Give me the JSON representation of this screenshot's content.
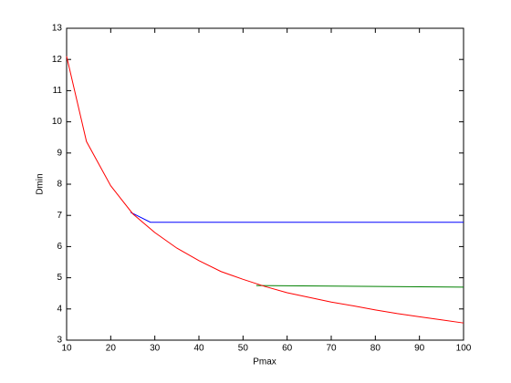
{
  "chart_data": {
    "type": "line",
    "x_label": "Pmax",
    "y_label": "Dmin",
    "xlim": [
      10,
      100
    ],
    "xticks": [
      10,
      20,
      30,
      40,
      50,
      60,
      70,
      80,
      90,
      100
    ],
    "ylim": [
      3,
      13
    ],
    "yticks": [
      3,
      4,
      5,
      6,
      7,
      8,
      9,
      10,
      11,
      12,
      13
    ],
    "series": [
      {
        "color": "#0000ff",
        "x": [
          24.5,
          29,
          100
        ],
        "values": [
          7.1,
          6.78,
          6.78
        ]
      },
      {
        "color": "#008000",
        "x": [
          53,
          100
        ],
        "values": [
          4.75,
          4.7
        ]
      },
      {
        "color": "#ff0000",
        "x": [
          10,
          14.5,
          20,
          25,
          30,
          35,
          40,
          45,
          50,
          55,
          60,
          65,
          70,
          75,
          80,
          85,
          90,
          95,
          100
        ],
        "values": [
          12.1,
          9.37,
          7.95,
          7.05,
          6.45,
          5.95,
          5.55,
          5.2,
          4.95,
          4.72,
          4.52,
          4.37,
          4.22,
          4.1,
          3.97,
          3.85,
          3.75,
          3.65,
          3.55
        ]
      }
    ]
  }
}
